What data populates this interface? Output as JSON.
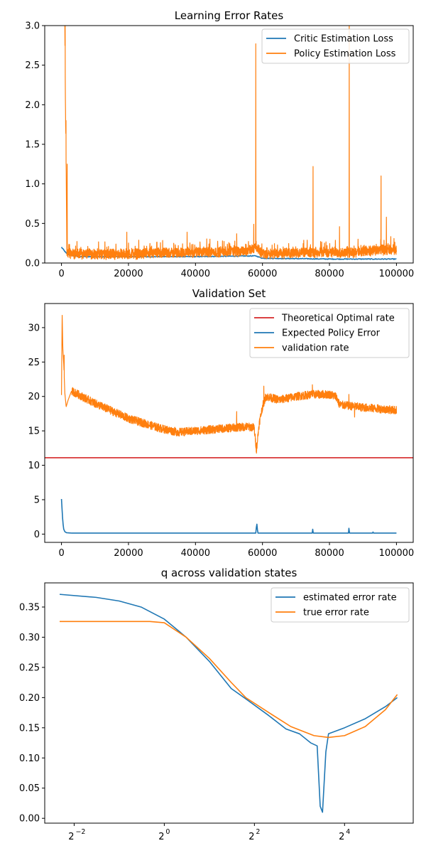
{
  "chart_data": [
    {
      "type": "line",
      "title": "Learning Error Rates",
      "xlim": [
        -5000,
        105000
      ],
      "ylim": [
        0,
        3.0
      ],
      "x_ticks": [
        0,
        20000,
        40000,
        60000,
        80000,
        100000
      ],
      "y_ticks": [
        0.0,
        0.5,
        1.0,
        1.5,
        2.0,
        2.5,
        3.0
      ],
      "y_tick_labels": [
        "0.0",
        "0.5",
        "1.0",
        "1.5",
        "2.0",
        "2.5",
        "3.0"
      ],
      "legend_position": "top-right",
      "series": [
        {
          "name": "Critic Estimation Loss",
          "color": "#1f77b4",
          "x": [
            0,
            1500,
            2500,
            5000,
            20000,
            40000,
            58000,
            60000,
            80000,
            100000
          ],
          "y": [
            0.2,
            0.12,
            0.1,
            0.08,
            0.08,
            0.08,
            0.09,
            0.06,
            0.05,
            0.05
          ]
        },
        {
          "name": "Policy Estimation Loss",
          "color": "#ff7f0e",
          "noisy": true,
          "x": [
            1000,
            1200,
            1400,
            1600,
            2000,
            5000,
            20000,
            40000,
            55000,
            58000,
            60000,
            75000,
            86000,
            95000,
            100000
          ],
          "y": [
            3.0,
            1.9,
            1.2,
            0.15,
            0.12,
            0.1,
            0.1,
            0.12,
            0.14,
            0.18,
            0.1,
            0.12,
            0.12,
            0.15,
            0.15
          ],
          "spikes": [
            {
              "x": 1100,
              "y": 3.0
            },
            {
              "x": 1350,
              "y": 1.8
            },
            {
              "x": 1700,
              "y": 1.25
            },
            {
              "x": 19500,
              "y": 0.39
            },
            {
              "x": 37500,
              "y": 0.39
            },
            {
              "x": 52300,
              "y": 0.37
            },
            {
              "x": 57400,
              "y": 0.49
            },
            {
              "x": 58000,
              "y": 2.77
            },
            {
              "x": 75100,
              "y": 1.22
            },
            {
              "x": 83000,
              "y": 0.46
            },
            {
              "x": 85900,
              "y": 3.0
            },
            {
              "x": 95400,
              "y": 1.1
            },
            {
              "x": 97000,
              "y": 0.58
            }
          ]
        }
      ]
    },
    {
      "type": "line",
      "title": "Validation Set",
      "xlim": [
        -5000,
        105000
      ],
      "ylim": [
        -1.2,
        33.5
      ],
      "x_ticks": [
        0,
        20000,
        40000,
        60000,
        80000,
        100000
      ],
      "y_ticks": [
        0,
        5,
        10,
        15,
        20,
        25,
        30
      ],
      "y_tick_labels": [
        "0",
        "5",
        "10",
        "15",
        "20",
        "25",
        "30"
      ],
      "legend_position": "top-right",
      "hline": {
        "name": "Theoretical Optimal rate",
        "y": 11.1,
        "color": "#d62728"
      },
      "series": [
        {
          "name": "Expected Policy Error",
          "color": "#1f77b4",
          "x": [
            0,
            300,
            600,
            1000,
            1500,
            3000,
            58000,
            58300,
            58600,
            100000
          ],
          "y": [
            5.1,
            2.5,
            0.8,
            0.35,
            0.2,
            0.15,
            0.15,
            1.6,
            0.15,
            0.15
          ],
          "spikes": [
            {
              "x": 75000,
              "y": 0.7
            },
            {
              "x": 85800,
              "y": 0.85
            },
            {
              "x": 93000,
              "y": 0.3
            }
          ]
        },
        {
          "name": "validation rate",
          "color": "#ff7f0e",
          "noisy": true,
          "x": [
            0,
            200,
            400,
            700,
            1000,
            1400,
            2000,
            3000,
            10000,
            20000,
            30000,
            35000,
            45000,
            55000,
            57500,
            58200,
            59000,
            60000,
            61000,
            65000,
            70000,
            75000,
            80000,
            82000,
            83000,
            90000,
            100000
          ],
          "y": [
            20.2,
            32.0,
            27.0,
            24.5,
            20.5,
            18.5,
            19.5,
            20.8,
            19.0,
            16.8,
            15.3,
            14.8,
            15.2,
            15.6,
            15.5,
            12.2,
            16.0,
            18.5,
            20.0,
            19.5,
            20.0,
            20.3,
            20.3,
            20.0,
            18.8,
            18.4,
            18.0
          ],
          "spikes": [
            {
              "x": 800,
              "y": 26.0
            },
            {
              "x": 52300,
              "y": 17.8
            },
            {
              "x": 60400,
              "y": 21.5
            },
            {
              "x": 74900,
              "y": 21.7
            },
            {
              "x": 85800,
              "y": 20.3
            },
            {
              "x": 87500,
              "y": 17.0
            }
          ]
        }
      ]
    },
    {
      "type": "line",
      "title": "q across validation states",
      "x_scale": "log2",
      "xlim": [
        0.159,
        46.0
      ],
      "ylim": [
        -0.008,
        0.39
      ],
      "x_ticks": [
        0.25,
        1,
        4,
        16
      ],
      "x_tick_labels": [
        {
          "base": "2",
          "exp": "−2"
        },
        {
          "base": "2",
          "exp": "0"
        },
        {
          "base": "2",
          "exp": "2"
        },
        {
          "base": "2",
          "exp": "4"
        }
      ],
      "y_ticks": [
        0.0,
        0.05,
        0.1,
        0.15,
        0.2,
        0.25,
        0.3,
        0.35
      ],
      "y_tick_labels": [
        "0.00",
        "0.05",
        "0.10",
        "0.15",
        "0.20",
        "0.25",
        "0.30",
        "0.35"
      ],
      "legend_position": "top-right",
      "series": [
        {
          "name": "estimated error rate",
          "color": "#1f77b4",
          "x": [
            0.2,
            0.35,
            0.5,
            0.7,
            1.0,
            1.4,
            2.0,
            2.8,
            3.5,
            5.0,
            6.5,
            8.0,
            9.5,
            10.5,
            11.0,
            11.4,
            12.0,
            12.5,
            16.0,
            22.0,
            30.0,
            36.0
          ],
          "y": [
            0.371,
            0.366,
            0.36,
            0.35,
            0.33,
            0.3,
            0.26,
            0.215,
            0.198,
            0.17,
            0.148,
            0.14,
            0.125,
            0.12,
            0.02,
            0.01,
            0.11,
            0.14,
            0.15,
            0.165,
            0.185,
            0.2
          ]
        },
        {
          "name": "true error rate",
          "color": "#ff7f0e",
          "x": [
            0.2,
            0.5,
            0.8,
            1.0,
            1.4,
            2.0,
            2.8,
            3.5,
            5.0,
            7.0,
            10.0,
            12.5,
            16.0,
            22.0,
            30.0,
            36.0
          ],
          "y": [
            0.326,
            0.326,
            0.326,
            0.324,
            0.3,
            0.265,
            0.225,
            0.2,
            0.175,
            0.152,
            0.137,
            0.134,
            0.137,
            0.152,
            0.18,
            0.205
          ]
        }
      ]
    }
  ]
}
